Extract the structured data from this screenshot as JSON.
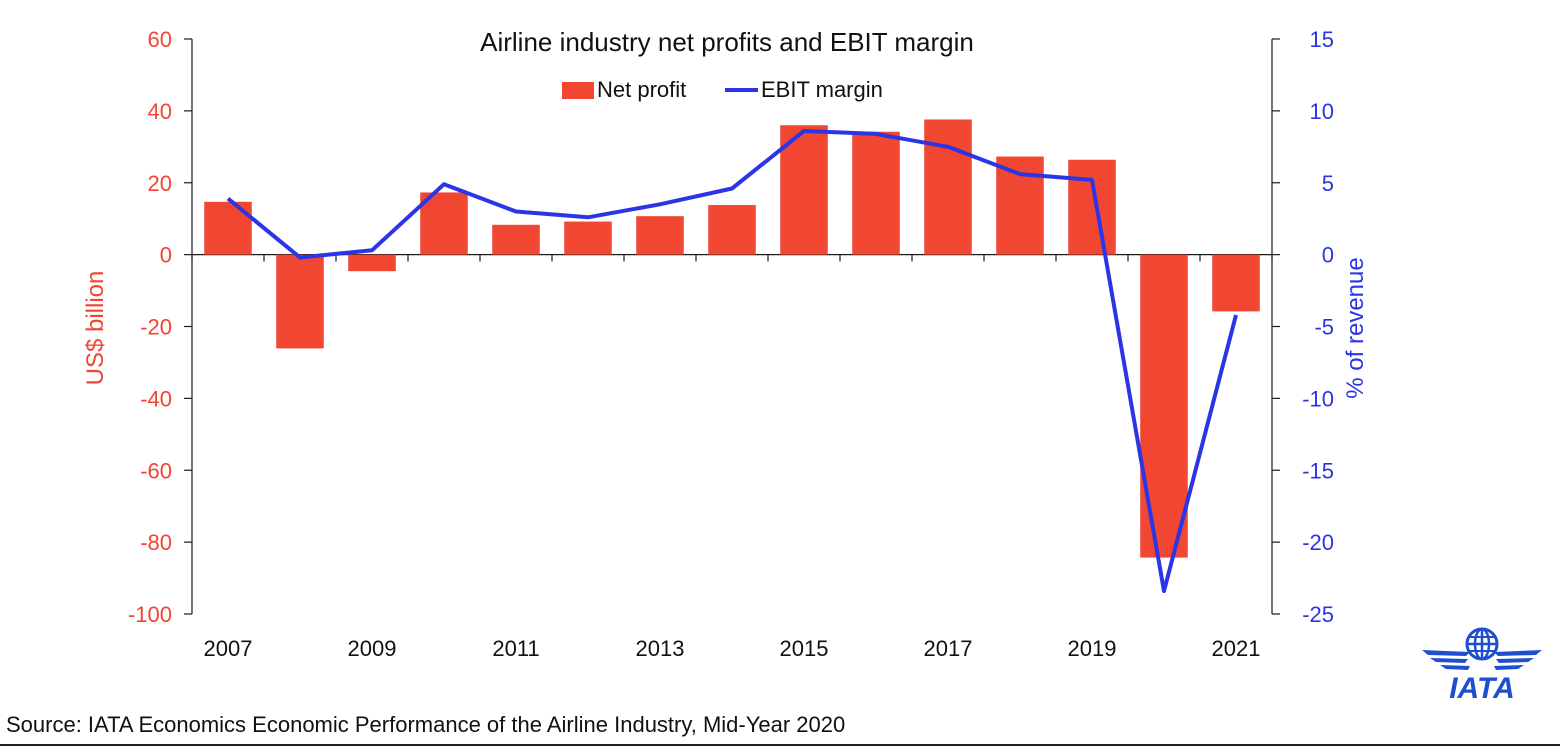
{
  "chart_data": {
    "type": "bar",
    "title": "Airline industry net profits and EBIT margin",
    "ylabel": "US$ billion",
    "y2label": "% of revenue",
    "ylim": [
      -100,
      60
    ],
    "y2lim": [
      -25,
      15
    ],
    "yticks": [
      60,
      40,
      20,
      0,
      -20,
      -40,
      -60,
      -80,
      -100
    ],
    "y2ticks": [
      15,
      10,
      5,
      0,
      -5,
      -10,
      -15,
      -20,
      -25
    ],
    "categories": [
      "2007",
      "2008",
      "2009",
      "2010",
      "2011",
      "2012",
      "2013",
      "2014",
      "2015",
      "2016",
      "2017",
      "2018",
      "2019",
      "2020",
      "2021"
    ],
    "x_tick_labels": [
      "2007",
      "2009",
      "2011",
      "2013",
      "2015",
      "2017",
      "2019",
      "2021"
    ],
    "series": [
      {
        "name": "Net profit",
        "type": "bar",
        "axis": "left",
        "color": "#f04632",
        "values": [
          14.7,
          -26.1,
          -4.6,
          17.3,
          8.3,
          9.2,
          10.7,
          13.8,
          36.0,
          34.2,
          37.6,
          27.3,
          26.4,
          -84.3,
          -15.8
        ]
      },
      {
        "name": "EBIT margin",
        "type": "line",
        "axis": "right",
        "color": "#2b35e6",
        "values": [
          3.9,
          -0.2,
          0.3,
          4.9,
          3.0,
          2.6,
          3.5,
          4.6,
          8.6,
          8.4,
          7.5,
          5.6,
          5.2,
          -23.4,
          -4.2
        ]
      }
    ],
    "legend_position": "top-center",
    "grid": false
  },
  "source_text": "Source: IATA Economics Economic Performance of the Airline Industry, Mid-Year 2020",
  "logo_text": "IATA"
}
